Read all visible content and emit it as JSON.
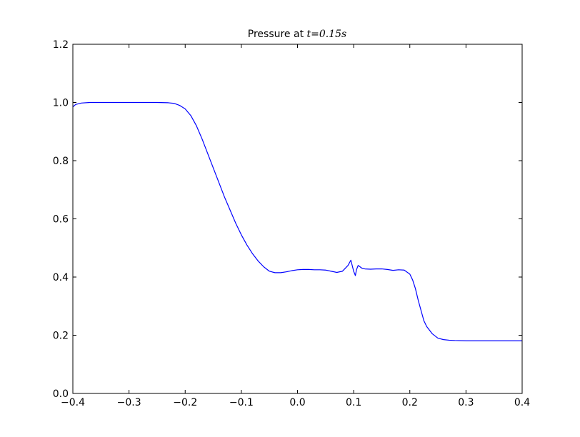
{
  "chart_data": {
    "type": "line",
    "title": "Pressure at ",
    "title_math": "t=0.15s",
    "xlabel": "",
    "ylabel": "",
    "xlim": [
      -0.4,
      0.4
    ],
    "ylim": [
      0.0,
      1.2
    ],
    "x_ticks": [
      -0.4,
      -0.3,
      -0.2,
      -0.1,
      0.0,
      0.1,
      0.2,
      0.3,
      0.4
    ],
    "x_tick_labels": [
      "−0.4",
      "−0.3",
      "−0.2",
      "−0.1",
      "0.0",
      "0.1",
      "0.2",
      "0.3",
      "0.4"
    ],
    "y_ticks": [
      0.0,
      0.2,
      0.4,
      0.6,
      0.8,
      1.0,
      1.2
    ],
    "y_tick_labels": [
      "0.0",
      "0.2",
      "0.4",
      "0.6",
      "0.8",
      "1.0",
      "1.2"
    ],
    "grid": false,
    "series": [
      {
        "color": "#0000ff",
        "x": [
          -0.4,
          -0.395,
          -0.385,
          -0.37,
          -0.35,
          -0.3,
          -0.25,
          -0.23,
          -0.22,
          -0.21,
          -0.2,
          -0.19,
          -0.18,
          -0.17,
          -0.16,
          -0.15,
          -0.14,
          -0.13,
          -0.12,
          -0.11,
          -0.1,
          -0.09,
          -0.08,
          -0.07,
          -0.06,
          -0.05,
          -0.04,
          -0.03,
          -0.02,
          -0.01,
          0.0,
          0.01,
          0.02,
          0.03,
          0.04,
          0.05,
          0.06,
          0.07,
          0.08,
          0.09,
          0.095,
          0.1,
          0.103,
          0.105,
          0.108,
          0.11,
          0.115,
          0.12,
          0.13,
          0.14,
          0.15,
          0.16,
          0.17,
          0.18,
          0.19,
          0.2,
          0.205,
          0.21,
          0.215,
          0.22,
          0.225,
          0.23,
          0.24,
          0.25,
          0.26,
          0.27,
          0.28,
          0.3,
          0.35,
          0.4
        ],
        "y": [
          0.985,
          0.993,
          0.998,
          1.0,
          1.0,
          1.0,
          1.0,
          0.999,
          0.997,
          0.99,
          0.978,
          0.955,
          0.92,
          0.875,
          0.825,
          0.775,
          0.725,
          0.675,
          0.63,
          0.585,
          0.545,
          0.51,
          0.48,
          0.455,
          0.435,
          0.42,
          0.415,
          0.415,
          0.418,
          0.422,
          0.425,
          0.426,
          0.426,
          0.425,
          0.425,
          0.424,
          0.42,
          0.416,
          0.42,
          0.44,
          0.458,
          0.42,
          0.405,
          0.425,
          0.44,
          0.437,
          0.43,
          0.428,
          0.427,
          0.428,
          0.428,
          0.426,
          0.423,
          0.425,
          0.424,
          0.41,
          0.39,
          0.36,
          0.32,
          0.285,
          0.25,
          0.23,
          0.205,
          0.19,
          0.185,
          0.183,
          0.182,
          0.181,
          0.181,
          0.181
        ]
      }
    ]
  }
}
